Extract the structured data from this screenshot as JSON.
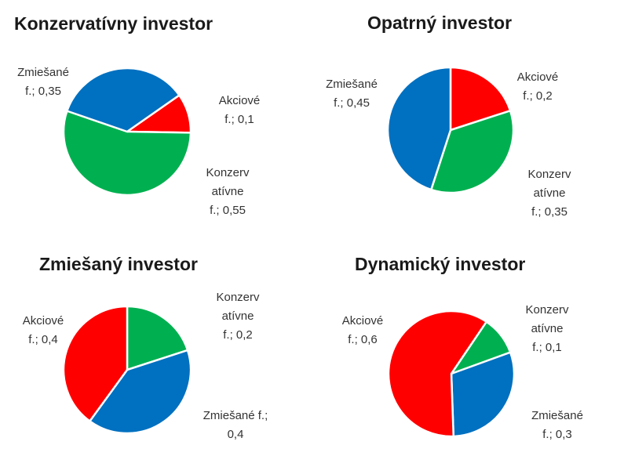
{
  "chart_data": [
    {
      "type": "pie",
      "title": "Konzervatívny investor",
      "slices": [
        {
          "label_lines": [
            "Akciové",
            "f.; 0,1"
          ],
          "value": 0.1,
          "color": "#FF0000"
        },
        {
          "label_lines": [
            "Konzerv",
            "atívne",
            "f.; 0,55"
          ],
          "value": 0.55,
          "color": "#00B050"
        },
        {
          "label_lines": [
            "Zmiešané",
            "f.; 0,35"
          ],
          "value": 0.35,
          "color": "#0070C0"
        }
      ]
    },
    {
      "type": "pie",
      "title": "Opatrný investor",
      "slices": [
        {
          "label_lines": [
            "Akciové",
            "f.; 0,2"
          ],
          "value": 0.2,
          "color": "#FF0000"
        },
        {
          "label_lines": [
            "Konzerv",
            "atívne",
            "f.; 0,35"
          ],
          "value": 0.35,
          "color": "#00B050"
        },
        {
          "label_lines": [
            "Zmiešané",
            "f.; 0,45"
          ],
          "value": 0.45,
          "color": "#0070C0"
        }
      ]
    },
    {
      "type": "pie",
      "title": "Zmiešaný investor",
      "slices": [
        {
          "label_lines": [
            "Konzerv",
            "atívne",
            "f.; 0,2"
          ],
          "value": 0.2,
          "color": "#00B050"
        },
        {
          "label_lines": [
            "Zmiešané f.;",
            "0,4"
          ],
          "value": 0.4,
          "color": "#0070C0"
        },
        {
          "label_lines": [
            "Akciové",
            "f.; 0,4"
          ],
          "value": 0.4,
          "color": "#FF0000"
        }
      ]
    },
    {
      "type": "pie",
      "title": "Dynamický investor",
      "slices": [
        {
          "label_lines": [
            "Konzerv",
            "atívne",
            "f.; 0,1"
          ],
          "value": 0.1,
          "color": "#00B050"
        },
        {
          "label_lines": [
            "Zmiešané",
            "f.; 0,3"
          ],
          "value": 0.3,
          "color": "#0070C0"
        },
        {
          "label_lines": [
            "Akciové",
            "f.; 0,6"
          ],
          "value": 0.6,
          "color": "#FF0000"
        }
      ]
    }
  ]
}
